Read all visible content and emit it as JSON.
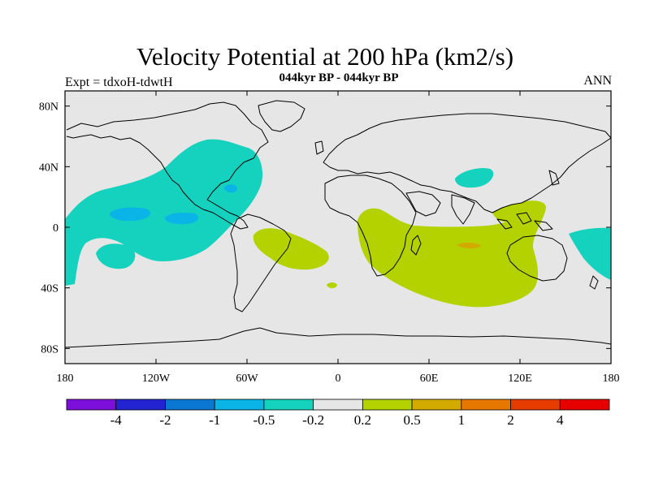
{
  "header": {
    "title": "Velocity Potential at 200 hPa (km2/s)",
    "subtitle": "044kyr BP - 044kyr BP",
    "experiment": "Expt = tdxoH-tdwtH",
    "season": "ANN"
  },
  "axes": {
    "lat_ticks": [
      {
        "value": 80,
        "label": "80N"
      },
      {
        "value": 40,
        "label": "40N"
      },
      {
        "value": 0,
        "label": "0"
      },
      {
        "value": -40,
        "label": "40S"
      },
      {
        "value": -80,
        "label": "80S"
      }
    ],
    "lon_ticks": [
      {
        "value": -180,
        "label": "180"
      },
      {
        "value": -120,
        "label": "120W"
      },
      {
        "value": -60,
        "label": "60W"
      },
      {
        "value": 0,
        "label": "0"
      },
      {
        "value": 60,
        "label": "60E"
      },
      {
        "value": 120,
        "label": "120E"
      },
      {
        "value": 180,
        "label": "180"
      }
    ],
    "lon_range": [
      -180,
      180
    ],
    "lat_range": [
      -90,
      90
    ]
  },
  "colorbar": {
    "colors": [
      "#7d0fdc",
      "#2323d2",
      "#0a78d2",
      "#0ab4e6",
      "#14d2be",
      "#e6e6e6",
      "#b4d200",
      "#d2aa00",
      "#e67800",
      "#e63c00",
      "#e60000"
    ],
    "labels": [
      "-4",
      "-2",
      "-1",
      "-0.5",
      "-0.2",
      "0.2",
      "0.5",
      "1",
      "2",
      "4"
    ]
  },
  "colors": {
    "background": "#e6e6e6",
    "coast": "#000000"
  }
}
